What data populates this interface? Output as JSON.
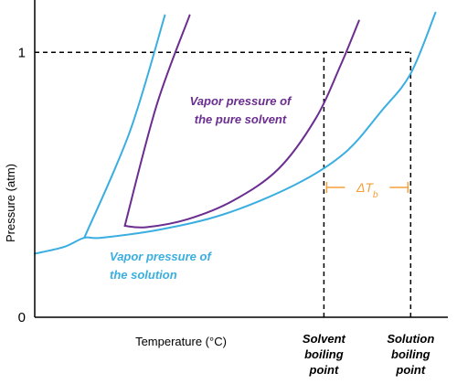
{
  "chart_data": {
    "type": "line",
    "title": "",
    "xlabel": "Temperature (°C)",
    "ylabel": "Pressure (atm)",
    "xlim": [
      0,
      10
    ],
    "ylim": [
      0,
      1.17
    ],
    "grid": false,
    "y_ticks": [
      {
        "value": 0,
        "label": "0"
      },
      {
        "value": 1,
        "label": "1"
      }
    ],
    "colors": {
      "solvent": "#6b2d8f",
      "solution": "#3aaee0",
      "delta": "#f4a03a",
      "axis": "#000000"
    },
    "series": [
      {
        "name": "Vapor pressure of the pure solvent",
        "label_lines": [
          "Vapor pressure of",
          "the pure solvent"
        ],
        "color_key": "solvent",
        "x": [
          2.18,
          2.7,
          3.7,
          4.8,
          5.9,
          6.8,
          7.4,
          7.85
        ],
        "y": [
          0.345,
          0.34,
          0.37,
          0.44,
          0.56,
          0.75,
          0.95,
          1.12
        ]
      },
      {
        "name": "Vapor pressure of the solution",
        "label_lines": [
          "Vapor pressure of",
          "the solution"
        ],
        "color_key": "solution",
        "x": [
          0.0,
          0.7,
          1.2,
          1.6,
          3.0,
          4.6,
          6.3,
          7.5,
          8.4,
          9.1,
          9.7
        ],
        "y": [
          0.24,
          0.265,
          0.3,
          0.3,
          0.33,
          0.39,
          0.5,
          0.62,
          0.78,
          0.92,
          1.15
        ]
      },
      {
        "name": "Solid–gas boundary",
        "color_key": "solution",
        "x": [
          1.2,
          2.3,
          3.15
        ],
        "y": [
          0.3,
          0.7,
          1.14
        ]
      },
      {
        "name": "Solid–liquid boundary (pure solvent)",
        "color_key": "solvent",
        "x": [
          2.18,
          2.95,
          3.75
        ],
        "y": [
          0.345,
          0.8,
          1.14
        ]
      }
    ],
    "reference_lines": [
      {
        "type": "horizontal",
        "y": 1,
        "x_start": 0,
        "x_end": 9.1
      },
      {
        "type": "vertical",
        "x": 7.0,
        "y_start": 0,
        "y_end": 1
      },
      {
        "type": "vertical",
        "x": 9.1,
        "y_start": 0,
        "y_end": 1
      }
    ],
    "annotations": {
      "solvent_bp": {
        "x": 7.0,
        "lines": [
          "Solvent",
          "boiling",
          "point"
        ]
      },
      "solution_bp": {
        "x": 9.1,
        "lines": [
          "Solution",
          "boiling",
          "point"
        ]
      },
      "delta": {
        "text": "ΔT",
        "subscript": "b",
        "x_start": 7.0,
        "x_end": 9.1,
        "y": 0.48
      }
    }
  }
}
